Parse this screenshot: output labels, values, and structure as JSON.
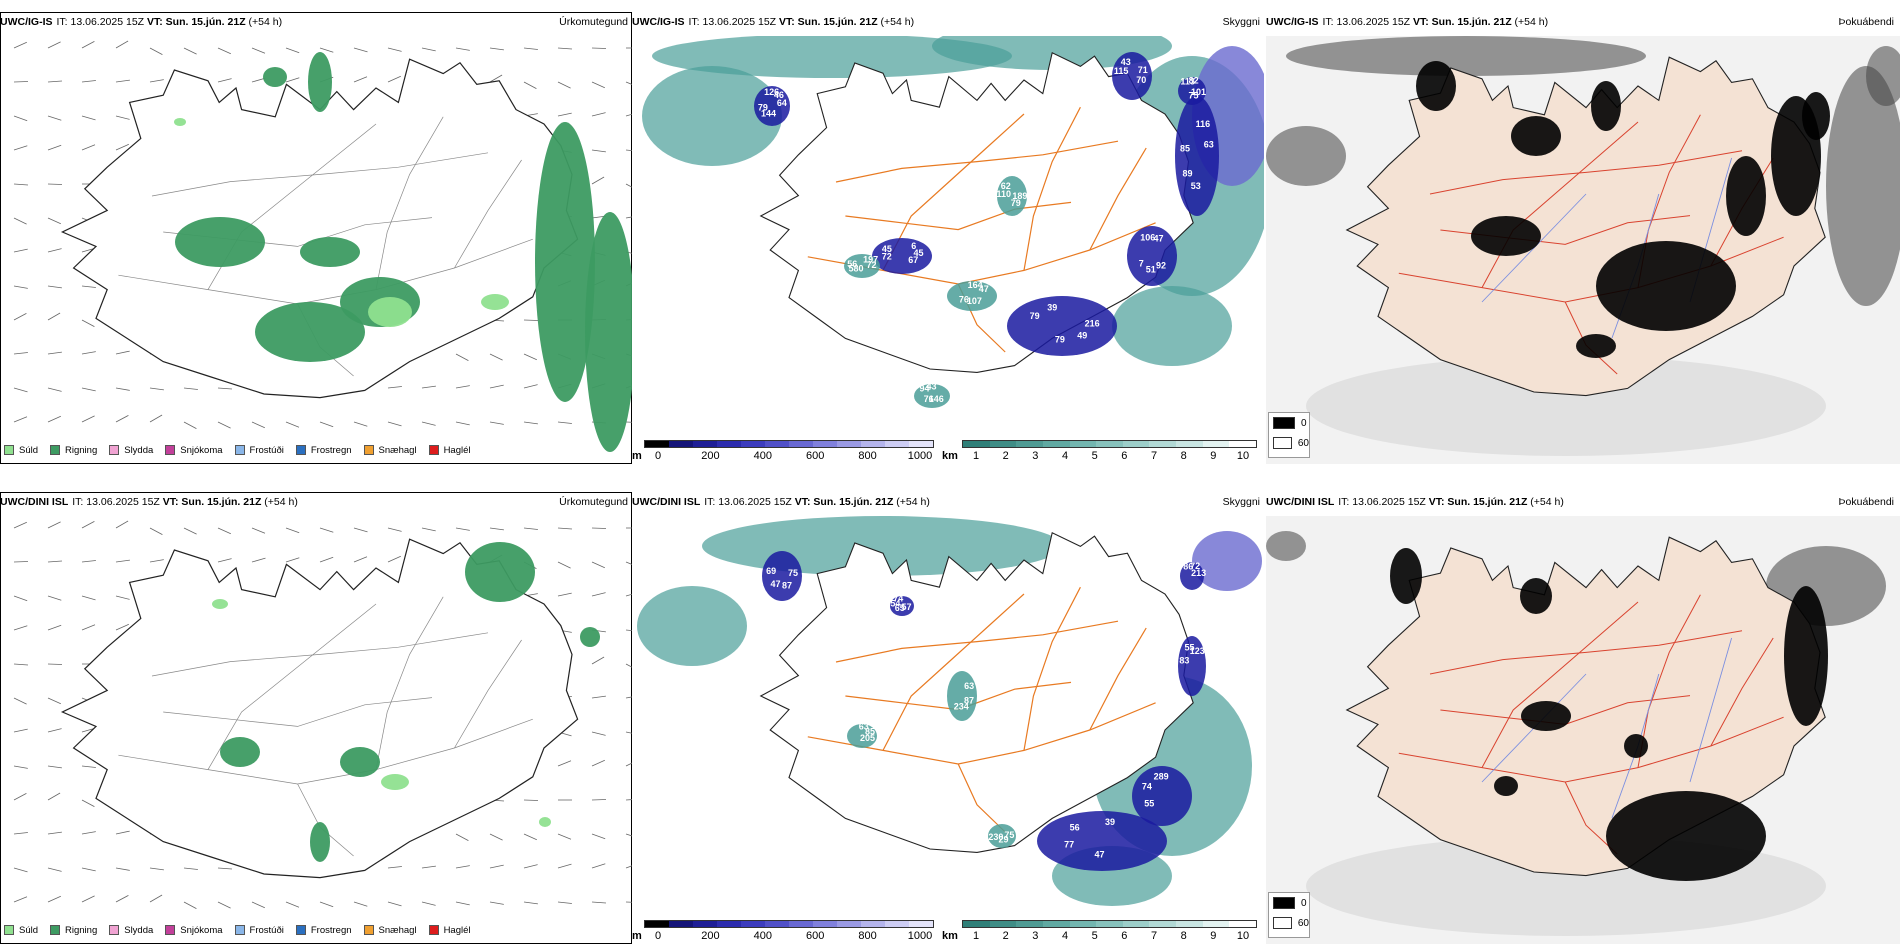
{
  "colors": {
    "rain": "#3d9b62",
    "drizzle": "#8fe08f",
    "sleet": "#f0a3d2",
    "snow": "#c2409a",
    "frostfog": "#8ab6e8",
    "frostrain": "#2a6fc0",
    "snowgrain": "#f0a030",
    "hail": "#dd1c1c",
    "cloudlow": "#1a1aa0",
    "cloudmid": "#6a6ad0",
    "vis": "#4a9e98",
    "road": "#e87a22",
    "land": "#f4e2d4",
    "sea": "#ffffff"
  },
  "rows": [
    {
      "model": "UWC/IG-IS",
      "it_label": "IT:",
      "it_value": "13.06.2025 15Z",
      "vt_label": "VT:",
      "vt_value": "Sun. 15.jún. 21Z",
      "lead": "(+54 h)",
      "panels": [
        {
          "type": "Úrkomutegund"
        },
        {
          "type": "Skyggni",
          "labels": [
            "64",
            "67",
            "79",
            "7",
            "85",
            "43",
            "82",
            "47",
            "72",
            "79",
            "76",
            "79",
            "45",
            "39",
            "47",
            "63",
            "70",
            "75",
            "76",
            "56",
            "62",
            "43",
            "46",
            "45",
            "49",
            "51",
            "89",
            "115",
            "113",
            "164",
            "197",
            "189",
            "146",
            "144",
            "72",
            "79",
            "106",
            "116",
            "71",
            "101",
            "107",
            "580",
            "110",
            "94",
            "126",
            "6",
            "216",
            "92",
            "53"
          ]
        },
        {
          "type": "Þokuábendi"
        }
      ]
    },
    {
      "model": "UWC/DINI ISL",
      "it_label": "IT:",
      "it_value": "13.06.2025 15Z",
      "vt_label": "VT:",
      "vt_value": "Sun. 15.jún. 21Z",
      "lead": "(+54 h)",
      "panels": [
        {
          "type": "Úrkomutegund"
        },
        {
          "type": "Skyggni",
          "labels": [
            "75",
            "57",
            "47",
            "55",
            "83",
            "86",
            "63",
            "63",
            "75",
            "87",
            "65",
            "77",
            "74",
            "55",
            "72",
            "85",
            "87",
            "29",
            "47",
            "54",
            "56",
            "289",
            "123",
            "213",
            "205",
            "234",
            "230",
            "69",
            "74",
            "39"
          ]
        },
        {
          "type": "Þokuábendi"
        }
      ]
    }
  ],
  "precip_legend": [
    {
      "label": "Súld",
      "color": "#8fe08f"
    },
    {
      "label": "Rigning",
      "color": "#3d9b62"
    },
    {
      "label": "Slydda",
      "color": "#f0a3d2"
    },
    {
      "label": "Snjókoma",
      "color": "#c2409a"
    },
    {
      "label": "Frostúði",
      "color": "#8ab6e8"
    },
    {
      "label": "Frostregn",
      "color": "#2a6fc0"
    },
    {
      "label": "Snæhagl",
      "color": "#f0a030"
    },
    {
      "label": "Haglél",
      "color": "#dd1c1c"
    }
  ],
  "cloud_bar": {
    "unit": "m",
    "ticks": [
      "0",
      "200",
      "400",
      "600",
      "800",
      "1000"
    ],
    "colors": [
      "#000000",
      "#141478",
      "#1e1e96",
      "#2c2cae",
      "#3c3cbe",
      "#5050c8",
      "#6868d2",
      "#8080dc",
      "#9a9ae4",
      "#b4b4ec",
      "#cdcdf4",
      "#e4e4fa"
    ]
  },
  "vis_bar": {
    "unit": "km",
    "ticks": [
      "1",
      "2",
      "3",
      "4",
      "5",
      "6",
      "7",
      "8",
      "9",
      "10"
    ],
    "colors": [
      "#2f7f78",
      "#3f8d86",
      "#4f9b94",
      "#60a9a2",
      "#73b6b0",
      "#87c2bc",
      "#9ccec9",
      "#b2dad6",
      "#c9e6e3",
      "#e2f2f0",
      "#ffffff"
    ]
  },
  "fog_legend": [
    {
      "label": "0",
      "color": "#000000"
    },
    {
      "label": "60",
      "color": "#ffffff"
    }
  ]
}
